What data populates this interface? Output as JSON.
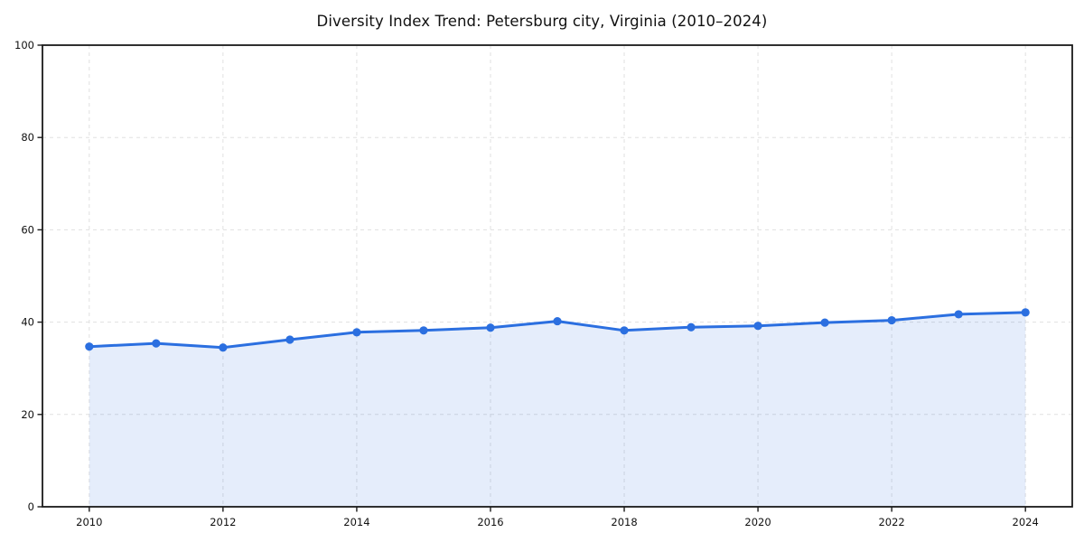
{
  "chart_data": {
    "type": "area",
    "title": "Diversity Index Trend: Petersburg city, Virginia (2010–2024)",
    "xlabel": "",
    "ylabel": "",
    "x": [
      2010,
      2011,
      2012,
      2013,
      2014,
      2015,
      2016,
      2017,
      2018,
      2019,
      2020,
      2021,
      2022,
      2023,
      2024
    ],
    "series": [
      {
        "name": "Diversity Index",
        "values": [
          34.7,
          35.4,
          34.5,
          36.2,
          37.8,
          38.2,
          38.8,
          40.2,
          38.2,
          38.9,
          39.2,
          39.9,
          40.4,
          41.7,
          42.1
        ]
      }
    ],
    "xlim": [
      2009.3,
      2024.7
    ],
    "ylim": [
      0,
      100
    ],
    "xticks": [
      2010,
      2012,
      2014,
      2016,
      2018,
      2020,
      2022,
      2024
    ],
    "yticks": [
      0,
      20,
      40,
      60,
      80,
      100
    ],
    "grid": true,
    "grid_style": "dashed",
    "legend_position": "none",
    "colors": {
      "line": "#2b6fe0",
      "marker": "#2b6fe0",
      "fill": "#2b6fe0",
      "fill_opacity": 0.12,
      "grid": "#e0e0e0",
      "spine": "#1a1a1a",
      "text": "#111111"
    }
  }
}
